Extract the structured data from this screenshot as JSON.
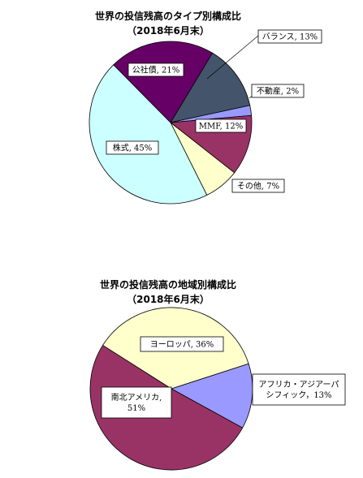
{
  "chart_data": [
    {
      "type": "pie",
      "title": "世界の投信残高のタイプ別構成比",
      "subtitle": "（2018年6月末）",
      "slices": [
        {
          "label": "バランス, 13%",
          "value": 13,
          "color": "#44546a"
        },
        {
          "label": "不動産, 2%",
          "value": 2,
          "color": "#9999ff"
        },
        {
          "label": "MMF, 12%",
          "value": 12,
          "color": "#993366"
        },
        {
          "label": "その他, 7%",
          "value": 7,
          "color": "#ffffcc"
        },
        {
          "label": "株式, 45%",
          "value": 45,
          "color": "#ccffff"
        },
        {
          "label": "公社債, 21%",
          "value": 21,
          "color": "#660066"
        }
      ]
    },
    {
      "type": "pie",
      "title": "世界の投信残高の地域別構成比",
      "subtitle": "（2018年6月末）",
      "slices": [
        {
          "label": "アフリカ・アジアーパシフィック，13%",
          "label_lines": [
            "アフリカ・アジアーパ",
            "シフィック，13%"
          ],
          "value": 13,
          "color": "#9999ff"
        },
        {
          "label": "南北アメリカ, 51%",
          "label_lines": [
            "南北アメリカ,",
            "51%"
          ],
          "value": 51,
          "color": "#993366"
        },
        {
          "label": "ヨーロッパ, 36%",
          "label_lines": [
            "ヨーロッパ, 36%"
          ],
          "value": 36,
          "color": "#ffffcc"
        }
      ]
    }
  ]
}
